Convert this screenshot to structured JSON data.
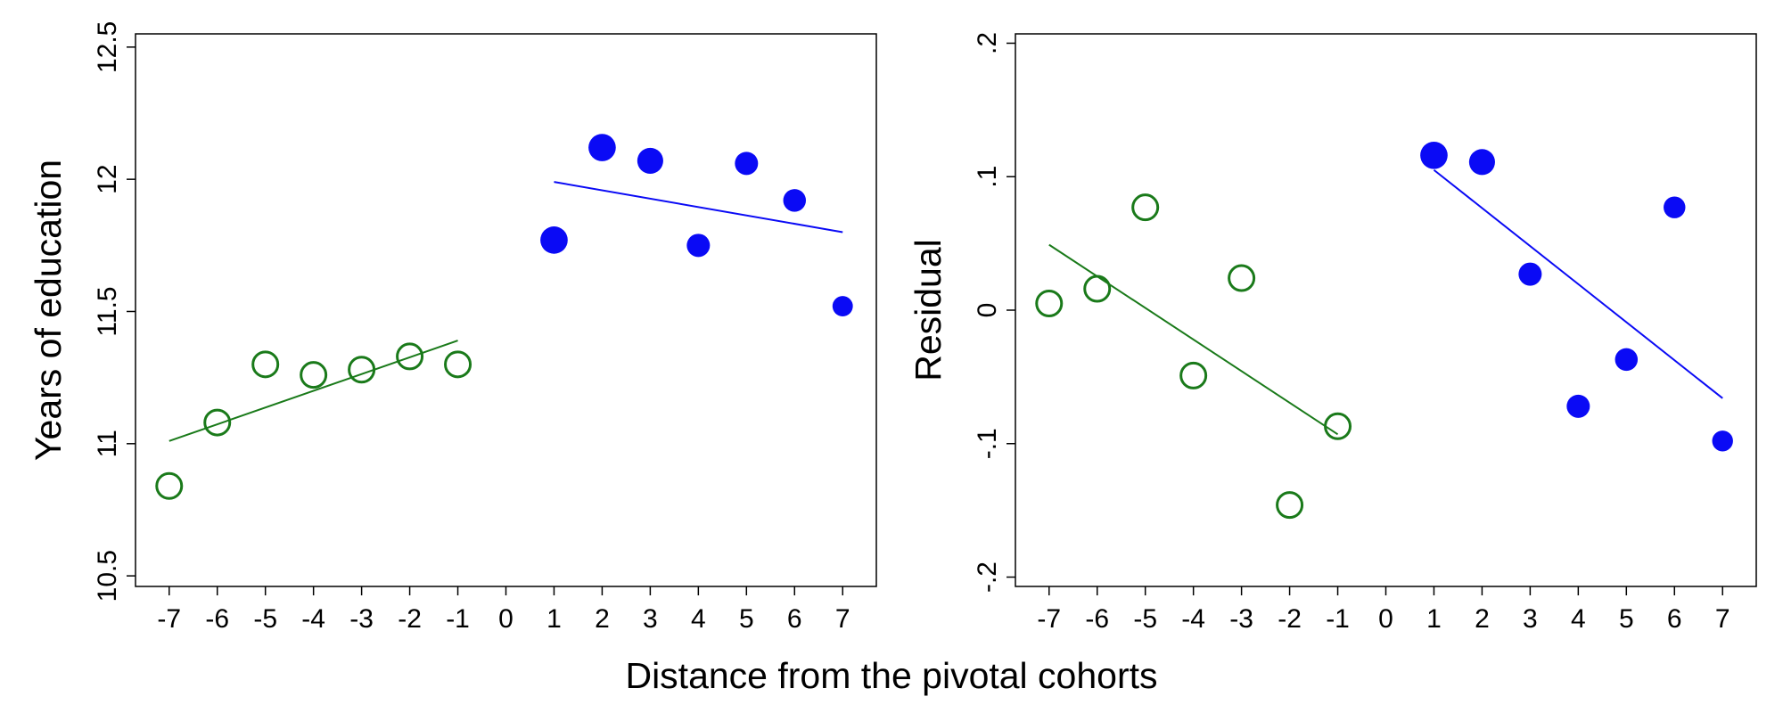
{
  "xlabel": "Distance from the pivotal cohorts",
  "colors": {
    "control": "#1a7a1a",
    "treated": "#0a0af5"
  },
  "chart_data": [
    {
      "type": "scatter",
      "ylabel": "Years of education",
      "x_ticks": [
        -7,
        -6,
        -5,
        -4,
        -3,
        -2,
        -1,
        0,
        1,
        2,
        3,
        4,
        5,
        6,
        7
      ],
      "y_ticks": [
        10.5,
        11,
        11.5,
        12,
        12.5
      ],
      "y_tick_labels": [
        "10.5",
        "11",
        "11.5",
        "12",
        "12.5"
      ],
      "xlim": [
        -7.7,
        7.7
      ],
      "ylim": [
        10.46,
        12.55
      ],
      "series": [
        {
          "style": "hollow",
          "color_key": "control",
          "x": [
            -7,
            -6,
            -5,
            -4,
            -3,
            -2,
            -1
          ],
          "y": [
            10.84,
            11.08,
            11.3,
            11.26,
            11.28,
            11.33,
            11.3
          ],
          "fit": {
            "x": [
              -7,
              -1
            ],
            "y": [
              11.01,
              11.39
            ]
          }
        },
        {
          "style": "filled",
          "color_key": "treated",
          "x": [
            1,
            2,
            3,
            4,
            5,
            6,
            7
          ],
          "y": [
            11.77,
            12.12,
            12.07,
            11.75,
            12.06,
            11.92,
            11.52
          ],
          "size": [
            1.18,
            1.18,
            1.12,
            1.0,
            1.0,
            0.98,
            0.88
          ],
          "fit": {
            "x": [
              1,
              7
            ],
            "y": [
              11.99,
              11.8
            ]
          }
        }
      ]
    },
    {
      "type": "scatter",
      "ylabel": "Residual",
      "x_ticks": [
        -7,
        -6,
        -5,
        -4,
        -3,
        -2,
        -1,
        0,
        1,
        2,
        3,
        4,
        5,
        6,
        7
      ],
      "y_ticks": [
        -0.2,
        -0.1,
        0,
        0.1,
        0.2
      ],
      "y_tick_labels": [
        "-.2",
        "-.1",
        "0",
        ".1",
        ".2"
      ],
      "xlim": [
        -7.7,
        7.7
      ],
      "ylim": [
        -0.207,
        0.207
      ],
      "series": [
        {
          "style": "hollow",
          "color_key": "control",
          "x": [
            -7,
            -6,
            -5,
            -4,
            -3,
            -2,
            -1
          ],
          "y": [
            0.005,
            0.016,
            0.077,
            -0.049,
            0.024,
            -0.146,
            -0.087
          ],
          "fit": {
            "x": [
              -7,
              -1
            ],
            "y": [
              0.049,
              -0.093
            ]
          }
        },
        {
          "style": "filled",
          "color_key": "treated",
          "x": [
            1,
            2,
            3,
            4,
            5,
            6,
            7
          ],
          "y": [
            0.116,
            0.111,
            0.027,
            -0.072,
            -0.037,
            0.077,
            -0.098
          ],
          "size": [
            1.18,
            1.12,
            1.0,
            1.0,
            0.98,
            0.94,
            0.9
          ],
          "fit": {
            "x": [
              1,
              7
            ],
            "y": [
              0.105,
              -0.066
            ]
          }
        }
      ]
    }
  ]
}
